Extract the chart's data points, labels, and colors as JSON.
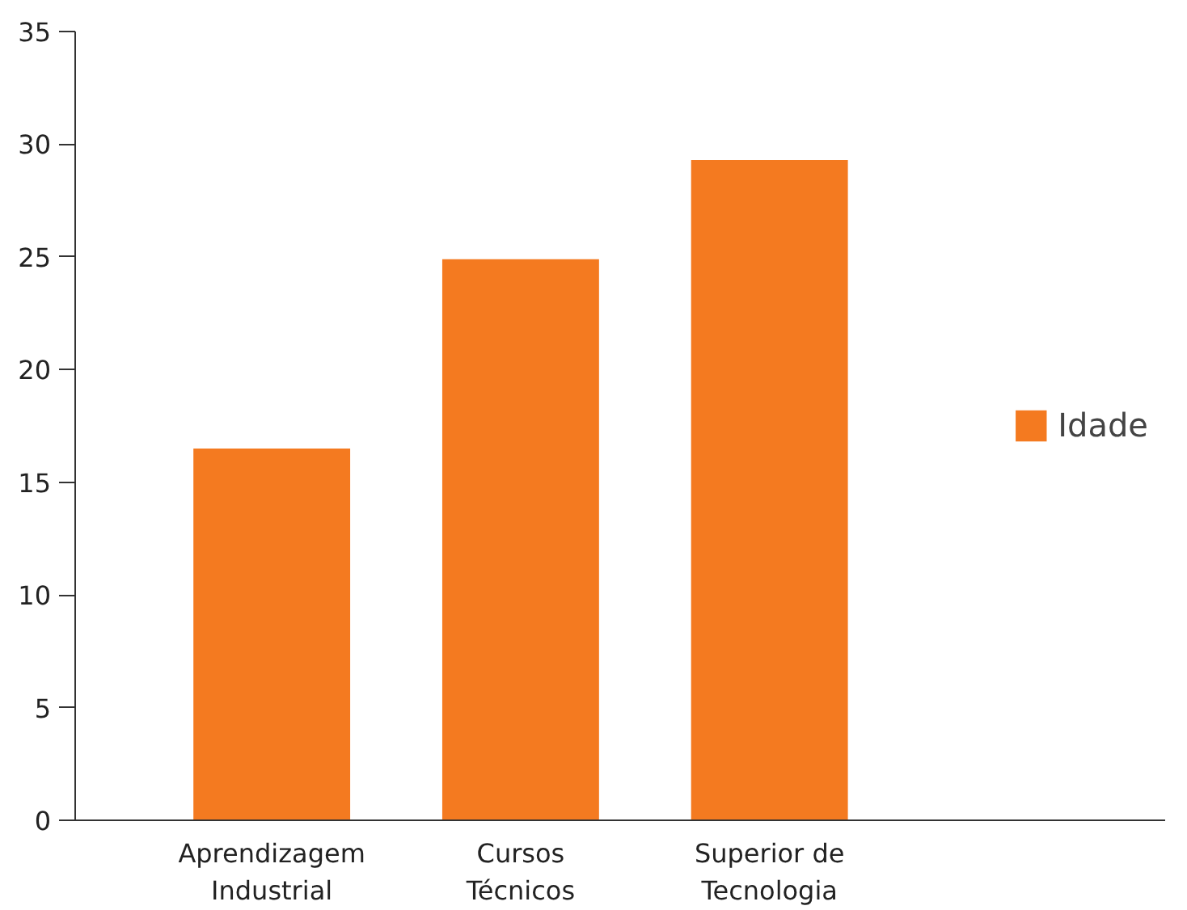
{
  "chart_data": {
    "type": "bar",
    "categories": [
      "Aprendizagem\nIndustrial",
      "Cursos\nTécnicos",
      "Superior de\nTecnologia"
    ],
    "series": [
      {
        "name": "Idade",
        "color": "#f47a20",
        "values": [
          16.5,
          24.9,
          29.3
        ]
      }
    ],
    "ylim": [
      0,
      35
    ],
    "yticks": [
      0,
      5,
      10,
      15,
      20,
      25,
      30,
      35
    ],
    "grid": false,
    "legend": "right"
  }
}
